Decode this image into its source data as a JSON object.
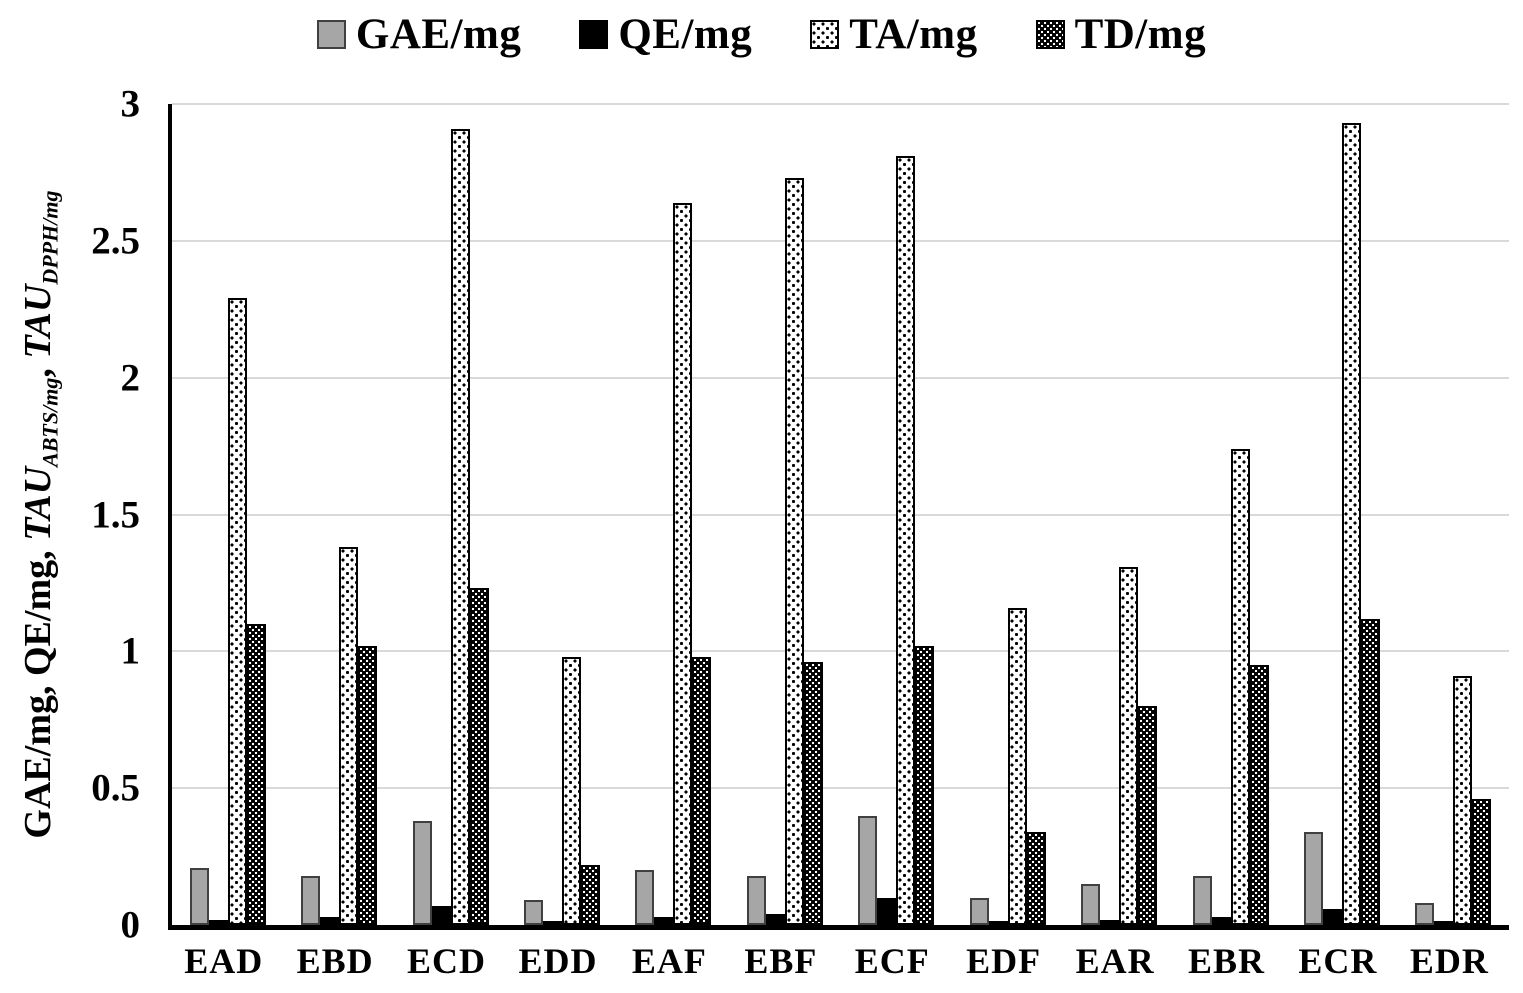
{
  "legend": {
    "items": [
      {
        "label": "GAE/mg",
        "pattern": "solid-gray",
        "marker": "gray-square-swatch"
      },
      {
        "label": "QE/mg",
        "pattern": "solid-black",
        "marker": "black-square-swatch"
      },
      {
        "label": "TA/mg",
        "pattern": "dots-on-white",
        "marker": "white-dotted-swatch"
      },
      {
        "label": "TD/mg",
        "pattern": "dots-on-black",
        "marker": "black-dotted-swatch"
      }
    ]
  },
  "y_axis": {
    "label_plain": "GAE/mg, QE/mg, ",
    "label_tau_1": "TAU",
    "label_sub_1": "ABTS/mg",
    "label_comma": ", ",
    "label_tau_2": "TAU",
    "label_sub_2": "DPPH/mg",
    "ticks": [
      "0",
      "0.5",
      "1",
      "1.5",
      "2",
      "2.5",
      "3"
    ]
  },
  "colors": {
    "bar_gray": "#a6a6a6",
    "bar_black": "#000000",
    "gridline": "#d9d9d9",
    "axis": "#000000",
    "background": "#ffffff"
  },
  "chart_data": {
    "type": "bar",
    "title": "",
    "xlabel": "",
    "ylabel": "GAE/mg, QE/mg, TAU_ABTS/mg, TAU_DPPH/mg",
    "ylim": [
      0,
      3
    ],
    "yticks": [
      0,
      0.5,
      1,
      1.5,
      2,
      2.5,
      3
    ],
    "grid": true,
    "legend_position": "top",
    "categories": [
      "EAD",
      "EBD",
      "ECD",
      "EDD",
      "EAF",
      "EBF",
      "ECF",
      "EDF",
      "EAR",
      "EBR",
      "ECR",
      "EDR"
    ],
    "series": [
      {
        "name": "GAE/mg",
        "pattern": "solid-gray",
        "values": [
          0.21,
          0.18,
          0.38,
          0.09,
          0.2,
          0.18,
          0.4,
          0.1,
          0.15,
          0.18,
          0.34,
          0.08
        ]
      },
      {
        "name": "QE/mg",
        "pattern": "solid-black",
        "values": [
          0.02,
          0.03,
          0.07,
          0.01,
          0.03,
          0.04,
          0.1,
          0.01,
          0.02,
          0.03,
          0.06,
          0.01
        ]
      },
      {
        "name": "TA/mg",
        "pattern": "dots-on-white",
        "values": [
          2.29,
          1.38,
          2.91,
          0.98,
          2.64,
          2.73,
          2.81,
          1.16,
          1.31,
          1.74,
          2.93,
          0.91
        ]
      },
      {
        "name": "TD/mg",
        "pattern": "dots-on-black",
        "values": [
          1.1,
          1.02,
          1.23,
          0.22,
          0.98,
          0.96,
          1.02,
          0.34,
          0.8,
          0.95,
          1.12,
          0.46
        ]
      }
    ]
  }
}
